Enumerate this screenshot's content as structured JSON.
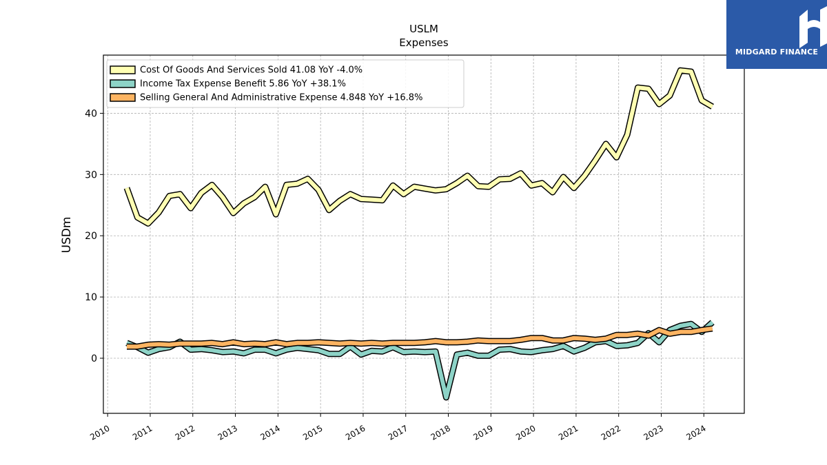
{
  "brand": {
    "name": "MIDGARD FINANCE",
    "color": "#2b5aa8"
  },
  "chart_data": {
    "type": "line",
    "title": "USLM",
    "subtitle": "Expenses",
    "xlabel": "",
    "ylabel": "USDm",
    "xlim": [
      2009.9,
      2024.95
    ],
    "ylim": [
      -9,
      49.5
    ],
    "x_ticks": [
      "2010",
      "2011",
      "2012",
      "2013",
      "2014",
      "2015",
      "2016",
      "2017",
      "2018",
      "2019",
      "2020",
      "2021",
      "2022",
      "2023",
      "2024"
    ],
    "y_ticks": [
      0,
      10,
      20,
      30,
      40
    ],
    "grid": true,
    "legend_position": "top-left",
    "x": [
      2010.45,
      2010.7,
      2010.95,
      2011.2,
      2011.45,
      2011.7,
      2011.95,
      2012.2,
      2012.45,
      2012.7,
      2012.95,
      2013.2,
      2013.45,
      2013.7,
      2013.95,
      2014.2,
      2014.45,
      2014.7,
      2014.95,
      2015.2,
      2015.45,
      2015.7,
      2015.95,
      2016.2,
      2016.45,
      2016.7,
      2016.95,
      2017.2,
      2017.45,
      2017.7,
      2017.95,
      2018.2,
      2018.45,
      2018.7,
      2018.95,
      2019.2,
      2019.45,
      2019.7,
      2019.95,
      2020.2,
      2020.45,
      2020.7,
      2020.95,
      2021.2,
      2021.45,
      2021.7,
      2021.95,
      2022.2,
      2022.45,
      2022.7,
      2022.95,
      2023.2,
      2023.45,
      2023.7,
      2023.95,
      2024.2
    ],
    "series": [
      {
        "name": "Cost Of Goods And Services Sold",
        "legend": "Cost Of Goods And Services Sold  41.08 YoY -4.0%",
        "color": "#ffffb3",
        "values": [
          27.8,
          23.0,
          22.0,
          23.8,
          26.5,
          26.8,
          24.5,
          27.0,
          28.3,
          26.3,
          23.7,
          25.3,
          26.3,
          28.0,
          23.5,
          28.3,
          28.5,
          29.3,
          27.5,
          24.2,
          25.7,
          26.8,
          26.0,
          25.9,
          25.8,
          28.2,
          26.8,
          28.0,
          27.7,
          27.4,
          27.6,
          28.6,
          29.8,
          28.1,
          28.0,
          29.2,
          29.3,
          30.2,
          28.2,
          28.6,
          27.1,
          29.6,
          27.8,
          29.8,
          32.3,
          35.0,
          32.8,
          36.5,
          44.2,
          44.0,
          41.5,
          42.9,
          47.0,
          46.8,
          42.1,
          41.08
        ]
      },
      {
        "name": "Income Tax Expense Benefit",
        "legend": "Income Tax Expense Benefit  5.86 YoY +38.1%",
        "color": "#8dd3c7",
        "values": [
          2.5,
          1.8,
          0.9,
          1.5,
          1.8,
          2.7,
          1.4,
          1.5,
          1.3,
          1.0,
          1.1,
          0.8,
          1.4,
          1.4,
          0.8,
          1.4,
          1.7,
          1.5,
          1.3,
          0.7,
          0.7,
          1.9,
          0.6,
          1.2,
          1.1,
          1.8,
          1.0,
          1.1,
          1.0,
          1.1,
          -6.4,
          0.6,
          0.9,
          0.4,
          0.4,
          1.4,
          1.5,
          1.1,
          1.0,
          1.3,
          1.5,
          2.0,
          1.1,
          1.7,
          2.6,
          2.8,
          2.0,
          2.1,
          2.5,
          4.1,
          2.6,
          4.6,
          5.3,
          5.6,
          4.3,
          5.86
        ]
      },
      {
        "name": "Selling General And Administrative Expense",
        "legend": "Selling General And Administrative Expense  4.848 YoY +16.8%",
        "color": "#fdb462",
        "values": [
          1.9,
          1.9,
          2.2,
          2.3,
          2.2,
          2.4,
          2.4,
          2.4,
          2.5,
          2.3,
          2.6,
          2.3,
          2.4,
          2.3,
          2.6,
          2.3,
          2.5,
          2.5,
          2.6,
          2.5,
          2.4,
          2.5,
          2.4,
          2.5,
          2.4,
          2.5,
          2.5,
          2.5,
          2.6,
          2.8,
          2.6,
          2.6,
          2.7,
          2.9,
          2.8,
          2.8,
          2.8,
          3.0,
          3.3,
          3.3,
          2.9,
          2.9,
          3.3,
          3.2,
          3.0,
          3.2,
          3.8,
          3.8,
          4.0,
          3.7,
          4.6,
          4.0,
          4.3,
          4.3,
          4.6,
          4.848
        ]
      }
    ]
  }
}
